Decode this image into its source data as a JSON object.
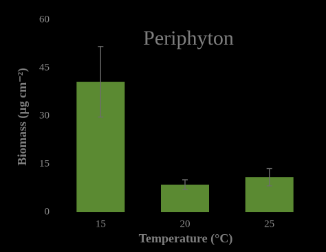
{
  "chart_data": {
    "type": "bar",
    "title": "Periphyton",
    "x_label": "Temperature (°C)",
    "y_label": "Biomass (µg cm⁻²)",
    "categories": [
      "15",
      "20",
      "25"
    ],
    "values": [
      40.7,
      8.6,
      10.9
    ],
    "errors": [
      11,
      1.5,
      2.7
    ],
    "color": "#5b8a32",
    "error_color": "#6e6e6e",
    "ylim": [
      0,
      60
    ],
    "yticks": [
      0,
      15,
      30,
      45,
      60
    ]
  }
}
